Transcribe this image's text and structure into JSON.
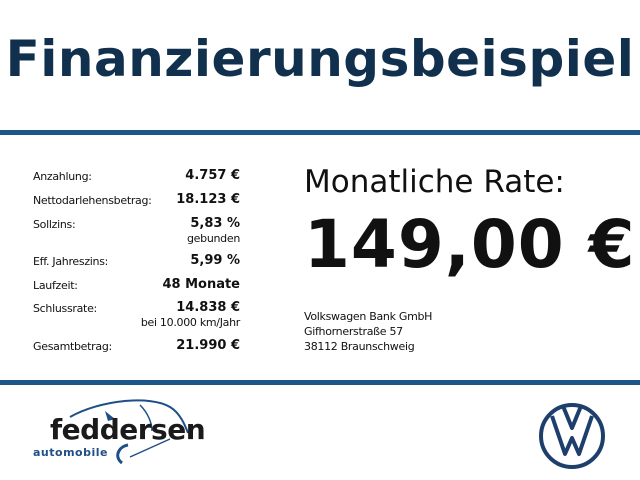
{
  "title": "Finanzierungsbeispiel",
  "details": [
    {
      "label": "Anzahlung:",
      "value": "4.757 €"
    },
    {
      "label": "Nettodarlehensbetrag:",
      "value": "18.123 €"
    },
    {
      "label": "Sollzins:",
      "value": "5,83 %",
      "note": "gebunden"
    },
    {
      "label": "Eff. Jahreszins:",
      "value": "5,99 %"
    },
    {
      "label": "Laufzeit:",
      "value": "48 Monate"
    },
    {
      "label": "Schlussrate:",
      "value": "14.838 €",
      "note": "bei 10.000 km/Jahr"
    },
    {
      "label": "Gesamtbetrag:",
      "value": "21.990 €"
    }
  ],
  "rate": {
    "label": "Monatliche Rate:",
    "value": "149,00 €"
  },
  "bank": {
    "name": "Volkswagen Bank GmbH",
    "street": "Gifhornerstraße 57",
    "city": "38112 Braunschweig"
  },
  "logos": {
    "dealer_main": "feddersen",
    "dealer_sub": "automobile",
    "brand": "VW"
  },
  "colors": {
    "title": "#10304d",
    "bar": "#1a5687",
    "logo_blue": "#1e4f86"
  }
}
